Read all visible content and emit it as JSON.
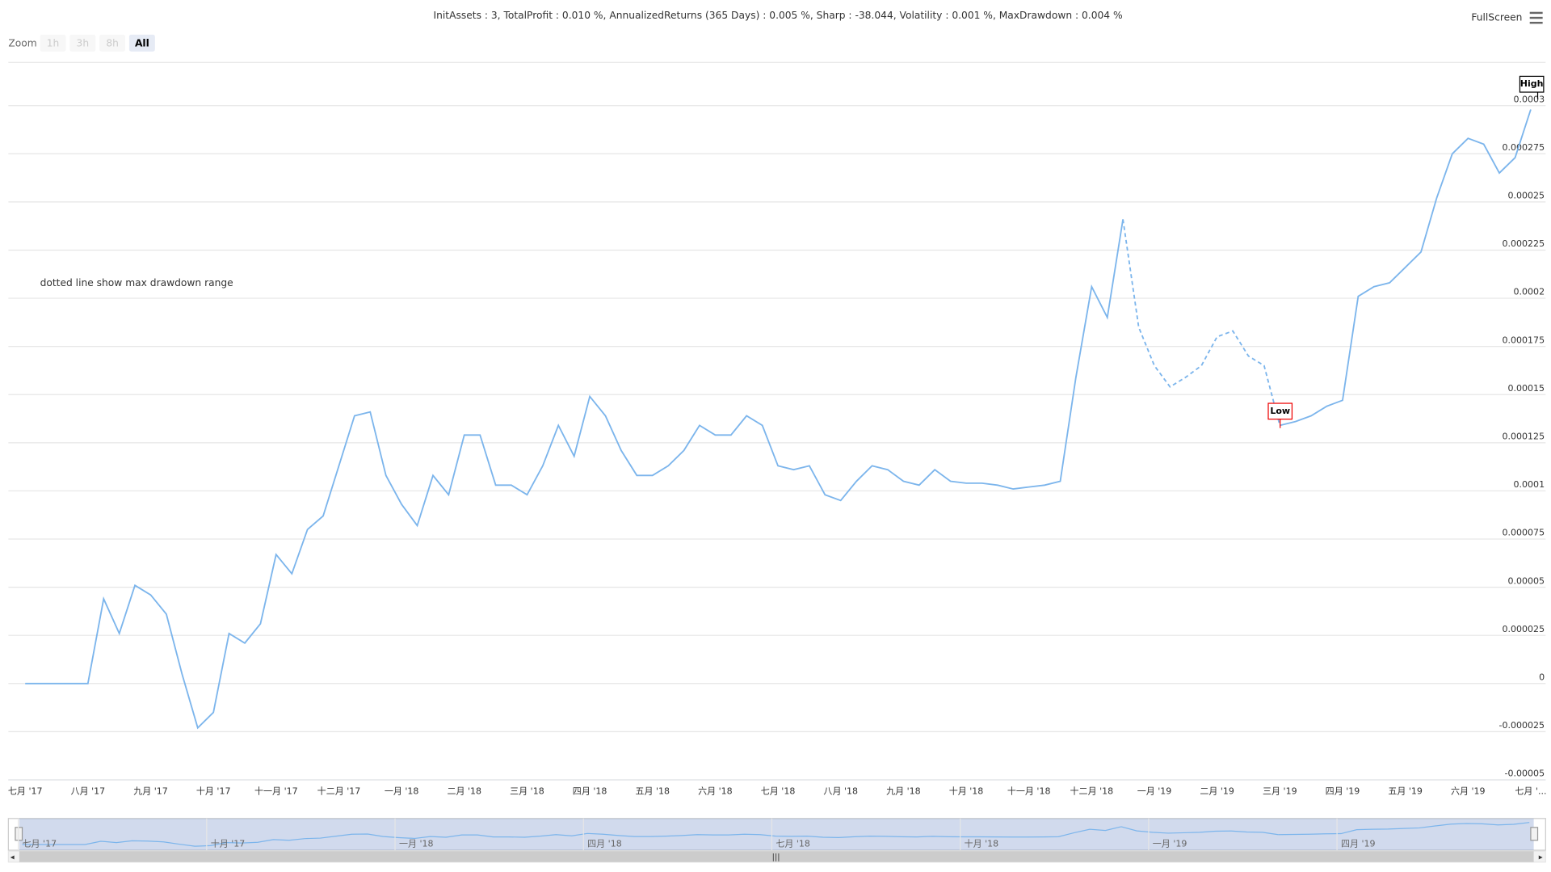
{
  "chart_data": {
    "type": "line",
    "title": "InitAssets : 3, TotalProfit : 0.010 %, AnnualizedReturns (365 Days) : 0.005 %, Sharp : -38.044, Volatility : 0.001 %, MaxDrawdown : 0.004 %",
    "annotation": "dotted line show max drawdown range",
    "flags": [
      "High",
      "Low"
    ],
    "range_selector": {
      "label": "Zoom",
      "buttons": [
        "1h",
        "3h",
        "8h",
        "All"
      ]
    },
    "fullscreen": "FullScreen",
    "categories": [
      "七月 '17",
      null,
      null,
      null,
      "八月 '17",
      null,
      null,
      null,
      "九月 '17",
      null,
      null,
      null,
      "十月 '17",
      null,
      null,
      null,
      "十一月 '17",
      null,
      null,
      null,
      "十二月 '17",
      null,
      null,
      null,
      "一月 '18",
      null,
      null,
      null,
      "二月 '18",
      null,
      null,
      null,
      "三月 '18",
      null,
      null,
      null,
      "四月 '18",
      null,
      null,
      null,
      "五月 '18",
      null,
      null,
      null,
      "六月 '18",
      null,
      null,
      null,
      "七月 '18",
      null,
      null,
      null,
      "八月 '18",
      null,
      null,
      null,
      "九月 '18",
      null,
      null,
      null,
      "十月 '18",
      null,
      null,
      null,
      "十一月 '18",
      null,
      null,
      null,
      "十二月 '18",
      null,
      null,
      null,
      "一月 '19",
      null,
      null,
      null,
      "二月 '19",
      null,
      null,
      null,
      "三月 '19",
      null,
      null,
      null,
      "四月 '19",
      null,
      null,
      null,
      "五月 '19",
      null,
      null,
      null,
      "六月 '19",
      null,
      null,
      null,
      "七月 '..."
    ],
    "series": [
      {
        "color": "#7cb5ec",
        "dashed": false,
        "values": [
          0,
          0,
          0,
          0,
          0,
          4.4e-05,
          2.6e-05,
          5.1e-05,
          4.6e-05,
          3.6e-05,
          5e-06,
          -2.3e-05,
          -1.5e-05,
          2.6e-05,
          2.1e-05,
          3.1e-05,
          6.7e-05,
          5.7e-05,
          8e-05,
          8.7e-05,
          0.000113,
          0.000139,
          0.000141,
          0.000108,
          9.3e-05,
          8.2e-05,
          0.000108,
          9.8e-05,
          0.000129,
          0.000129,
          0.000103,
          0.000103,
          9.8e-05,
          0.000113,
          0.000134,
          0.000118,
          0.000149,
          0.000139,
          0.000121,
          0.000108,
          0.000108,
          0.000113,
          0.000121,
          0.000134,
          0.000129,
          0.000129,
          0.000139,
          0.000134,
          0.000113,
          0.000111,
          0.000113,
          9.8e-05,
          9.5e-05,
          0.000105,
          0.000113,
          0.000111,
          0.000105,
          0.000103,
          0.000111,
          0.000105,
          0.000104,
          0.000104,
          0.000103,
          0.000101,
          0.000102,
          0.000103,
          0.000105,
          0.000159,
          0.000206,
          0.00019,
          0.000241,
          null,
          null,
          null,
          null,
          null,
          null,
          null,
          null,
          null,
          0.000134,
          0.000136,
          0.000139,
          0.000144,
          0.000147,
          0.000201,
          0.000206,
          0.000208,
          0.000216,
          0.000224,
          0.000252,
          0.000275,
          0.000283,
          0.00028,
          0.000265,
          0.000273,
          0.000298
        ]
      },
      {
        "color": "#7cb5ec",
        "dashed": true,
        "values": [
          null,
          null,
          null,
          null,
          null,
          null,
          null,
          null,
          null,
          null,
          null,
          null,
          null,
          null,
          null,
          null,
          null,
          null,
          null,
          null,
          null,
          null,
          null,
          null,
          null,
          null,
          null,
          null,
          null,
          null,
          null,
          null,
          null,
          null,
          null,
          null,
          null,
          null,
          null,
          null,
          null,
          null,
          null,
          null,
          null,
          null,
          null,
          null,
          null,
          null,
          null,
          null,
          null,
          null,
          null,
          null,
          null,
          null,
          null,
          null,
          null,
          null,
          null,
          null,
          null,
          null,
          null,
          null,
          null,
          null,
          0.000241,
          0.000185,
          0.000165,
          0.000154,
          0.000159,
          0.000165,
          0.00018,
          0.000183,
          0.00017,
          0.000165,
          0.000134,
          null,
          null,
          null,
          null,
          null,
          null,
          null,
          null,
          null,
          null,
          null,
          null,
          null,
          null,
          null,
          null
        ]
      }
    ],
    "ylim": [
      -5e-05,
      0.000325
    ],
    "yticks": [
      -5e-05,
      -2.5e-05,
      0,
      2.5e-05,
      5e-05,
      7.5e-05,
      0.0001,
      0.000125,
      0.00015,
      0.000175,
      0.0002,
      0.000225,
      0.00025,
      0.000275,
      0.0003
    ],
    "grid": true,
    "navigator": {
      "labels": [
        "七月 '17",
        "十月 '17",
        "一月 '18",
        "四月 '18",
        "七月 '18",
        "十月 '18",
        "一月 '19",
        "四月 '19"
      ]
    }
  }
}
